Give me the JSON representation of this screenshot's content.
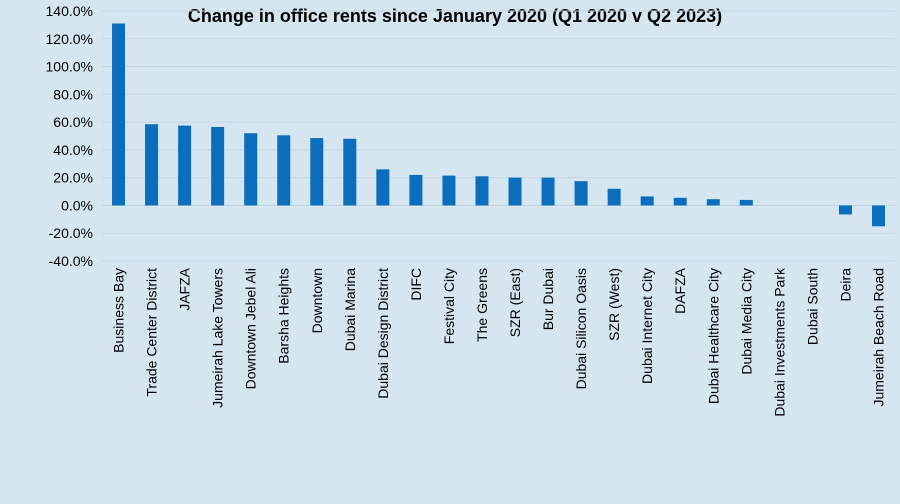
{
  "chart_data": {
    "type": "bar",
    "title": "Change in office rents since January 2020 (Q1 2020 v Q2 2023)",
    "xlabel": "",
    "ylabel": "",
    "ylim": [
      -40,
      140
    ],
    "yticks": [
      140,
      120,
      100,
      80,
      60,
      40,
      20,
      0,
      -20,
      -40
    ],
    "ytick_labels": [
      "140.0%",
      "120.0%",
      "100.0%",
      "80.0%",
      "60.0%",
      "40.0%",
      "20.0%",
      "0.0%",
      "-20.0%",
      "-40.0%"
    ],
    "grid": true,
    "bar_color": "#0a6ebd",
    "categories": [
      "Business Bay",
      "Trade Center District",
      "JAFZA",
      "Jumeirah Lake Towers",
      "Downtown Jebel Ali",
      "Barsha Heights",
      "Downtown",
      "Dubai Marina",
      "Dubai Design District",
      "DIFC",
      "Festival City",
      "The Greens",
      "SZR (East)",
      "Bur Dubai",
      "Dubai Silicon Oasis",
      "SZR (West)",
      "Dubai Internet City",
      "DAFZA",
      "Dubai Healthcare City",
      "Dubai Media City",
      "Dubai Investments Park",
      "Dubai South",
      "Deira",
      "Jumeirah Beach Road"
    ],
    "values": [
      131,
      58.5,
      57.5,
      56.5,
      52,
      50.5,
      48.5,
      48,
      26,
      22,
      21.5,
      21,
      20,
      20,
      17.5,
      12,
      6.5,
      5.5,
      4.5,
      4,
      0,
      0,
      -6.5,
      -15
    ]
  }
}
